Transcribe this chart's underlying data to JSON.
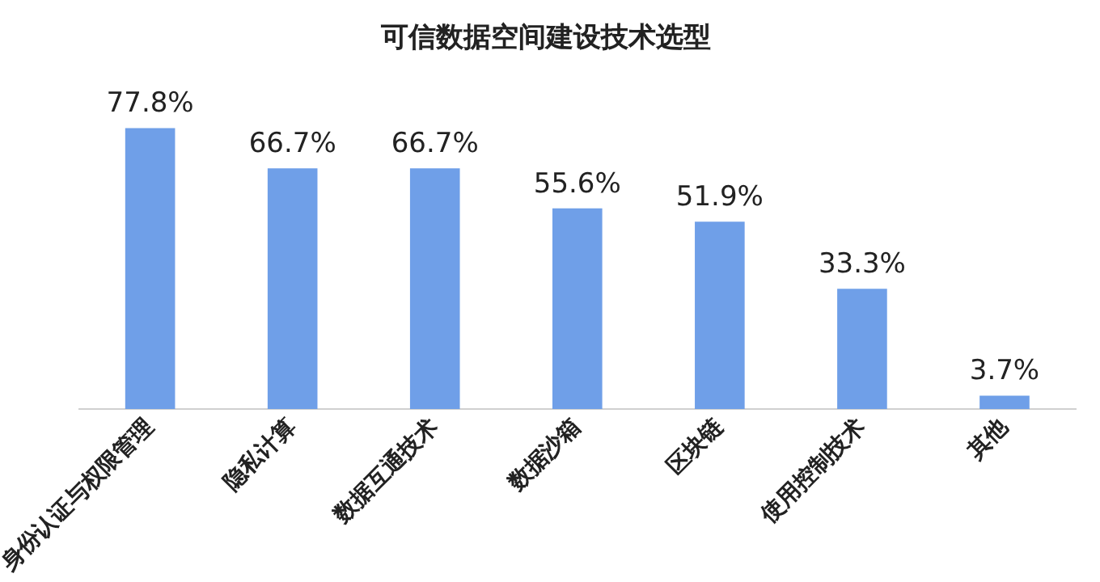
{
  "chart_data": {
    "type": "bar",
    "title": "可信数据空间建设技术选型",
    "categories": [
      "身份认证与权限管理",
      "隐私计算",
      "数据互通技术",
      "数据沙箱",
      "区块链",
      "使用控制技术",
      "其他"
    ],
    "values": [
      77.8,
      66.7,
      66.7,
      55.6,
      51.9,
      33.3,
      3.7
    ],
    "value_labels": [
      "77.8%",
      "66.7%",
      "66.7%",
      "55.6%",
      "51.9%",
      "33.3%",
      "3.7%"
    ],
    "color": "#6f9fe8",
    "grid": false,
    "legend": false
  }
}
